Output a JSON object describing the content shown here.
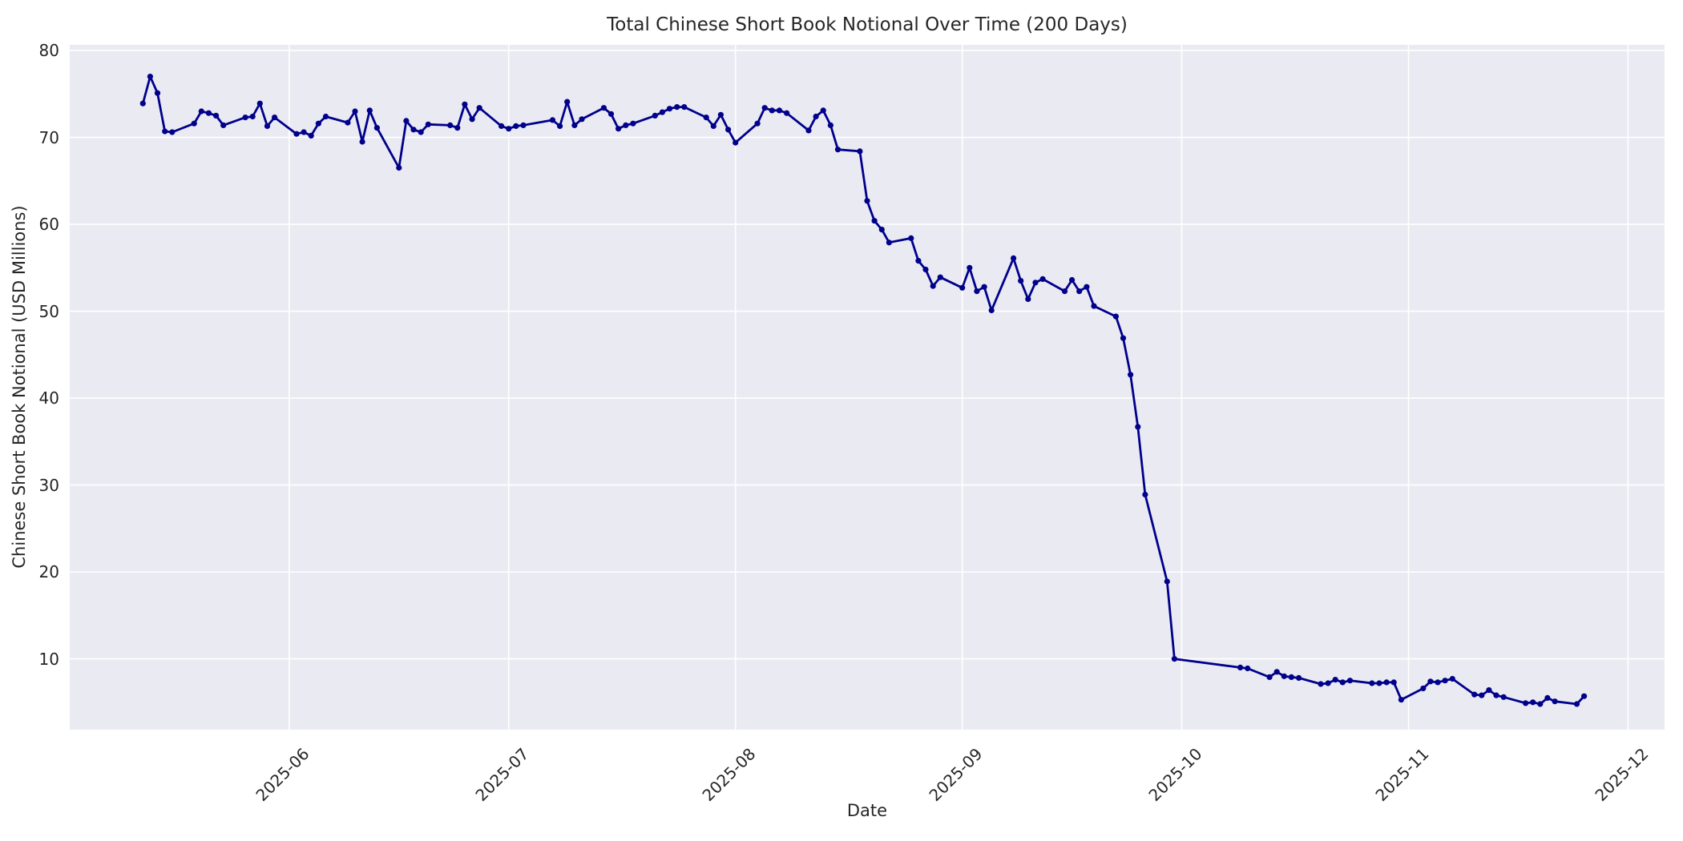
{
  "chart_data": {
    "type": "line",
    "title": "Total Chinese Short Book Notional Over Time (200 Days)",
    "xlabel": "Date",
    "ylabel": "Chinese Short Book Notional (USD Millions)",
    "legend": null,
    "grid": true,
    "line_color": "#00008B",
    "marker": "circle",
    "plot_background": "#EAEAF2",
    "grid_color": "#FFFFFF",
    "text_color": "#262626",
    "xlim": [
      "2025-05-02",
      "2025-12-06"
    ],
    "ylim": [
      1.85,
      80.65
    ],
    "y_ticks": [
      10,
      20,
      30,
      40,
      50,
      60,
      70,
      80
    ],
    "x_ticks": [
      {
        "date": "2025-06-01",
        "label": "2025-06"
      },
      {
        "date": "2025-07-01",
        "label": "2025-07"
      },
      {
        "date": "2025-08-01",
        "label": "2025-08"
      },
      {
        "date": "2025-09-01",
        "label": "2025-09"
      },
      {
        "date": "2025-10-01",
        "label": "2025-10"
      },
      {
        "date": "2025-11-01",
        "label": "2025-11"
      },
      {
        "date": "2025-12-01",
        "label": "2025-12"
      }
    ],
    "series": [
      {
        "name": "Total Chinese Short Book Notional",
        "x": [
          "2025-05-12",
          "2025-05-13",
          "2025-05-14",
          "2025-05-15",
          "2025-05-16",
          "2025-05-19",
          "2025-05-20",
          "2025-05-21",
          "2025-05-22",
          "2025-05-23",
          "2025-05-26",
          "2025-05-27",
          "2025-05-28",
          "2025-05-29",
          "2025-05-30",
          "2025-06-02",
          "2025-06-03",
          "2025-06-04",
          "2025-06-05",
          "2025-06-06",
          "2025-06-09",
          "2025-06-10",
          "2025-06-11",
          "2025-06-12",
          "2025-06-13",
          "2025-06-16",
          "2025-06-17",
          "2025-06-18",
          "2025-06-19",
          "2025-06-20",
          "2025-06-23",
          "2025-06-24",
          "2025-06-25",
          "2025-06-26",
          "2025-06-27",
          "2025-06-30",
          "2025-07-01",
          "2025-07-02",
          "2025-07-03",
          "2025-07-07",
          "2025-07-08",
          "2025-07-09",
          "2025-07-10",
          "2025-07-11",
          "2025-07-14",
          "2025-07-15",
          "2025-07-16",
          "2025-07-17",
          "2025-07-18",
          "2025-07-21",
          "2025-07-22",
          "2025-07-23",
          "2025-07-24",
          "2025-07-25",
          "2025-07-28",
          "2025-07-29",
          "2025-07-30",
          "2025-07-31",
          "2025-08-01",
          "2025-08-04",
          "2025-08-05",
          "2025-08-06",
          "2025-08-07",
          "2025-08-08",
          "2025-08-11",
          "2025-08-12",
          "2025-08-13",
          "2025-08-14",
          "2025-08-15",
          "2025-08-18",
          "2025-08-19",
          "2025-08-20",
          "2025-08-21",
          "2025-08-22",
          "2025-08-25",
          "2025-08-26",
          "2025-08-27",
          "2025-08-28",
          "2025-08-29",
          "2025-09-01",
          "2025-09-02",
          "2025-09-03",
          "2025-09-04",
          "2025-09-05",
          "2025-09-08",
          "2025-09-09",
          "2025-09-10",
          "2025-09-11",
          "2025-09-12",
          "2025-09-15",
          "2025-09-16",
          "2025-09-17",
          "2025-09-18",
          "2025-09-19",
          "2025-09-22",
          "2025-09-23",
          "2025-09-24",
          "2025-09-25",
          "2025-09-26",
          "2025-09-29",
          "2025-09-30",
          "2025-10-09",
          "2025-10-10",
          "2025-10-13",
          "2025-10-14",
          "2025-10-15",
          "2025-10-16",
          "2025-10-17",
          "2025-10-20",
          "2025-10-21",
          "2025-10-22",
          "2025-10-23",
          "2025-10-24",
          "2025-10-27",
          "2025-10-28",
          "2025-10-29",
          "2025-10-30",
          "2025-10-31",
          "2025-11-03",
          "2025-11-04",
          "2025-11-05",
          "2025-11-06",
          "2025-11-07",
          "2025-11-10",
          "2025-11-11",
          "2025-11-12",
          "2025-11-13",
          "2025-11-14",
          "2025-11-17",
          "2025-11-18",
          "2025-11-19",
          "2025-11-20",
          "2025-11-21",
          "2025-11-24",
          "2025-11-25"
        ],
        "y": [
          73.9,
          77.0,
          75.1,
          70.7,
          70.6,
          71.6,
          73.0,
          72.8,
          72.5,
          71.4,
          72.3,
          72.4,
          73.9,
          71.3,
          72.3,
          70.4,
          70.6,
          70.2,
          71.6,
          72.4,
          71.7,
          73.0,
          69.5,
          73.1,
          71.1,
          66.5,
          71.9,
          70.9,
          70.6,
          71.5,
          71.4,
          71.1,
          73.8,
          72.1,
          73.4,
          71.3,
          71.0,
          71.3,
          71.4,
          72.0,
          71.3,
          74.1,
          71.4,
          72.1,
          73.4,
          72.7,
          71.0,
          71.4,
          71.6,
          72.5,
          72.9,
          73.3,
          73.5,
          73.5,
          72.3,
          71.3,
          72.6,
          70.9,
          69.4,
          71.6,
          73.4,
          73.1,
          73.1,
          72.8,
          70.8,
          72.4,
          73.1,
          71.4,
          68.6,
          68.4,
          62.7,
          60.4,
          59.4,
          57.9,
          58.4,
          55.8,
          54.8,
          52.9,
          53.9,
          52.7,
          55.0,
          52.3,
          52.8,
          50.1,
          56.1,
          53.5,
          51.4,
          53.3,
          53.7,
          52.3,
          53.6,
          52.3,
          52.8,
          50.6,
          49.4,
          46.9,
          42.7,
          36.7,
          28.9,
          18.9,
          10.0,
          9.0,
          8.9,
          7.9,
          8.5,
          8.0,
          7.9,
          7.8,
          7.1,
          7.2,
          7.6,
          7.3,
          7.5,
          7.2,
          7.2,
          7.3,
          7.3,
          5.3,
          6.6,
          7.4,
          7.3,
          7.5,
          7.7,
          5.9,
          5.8,
          6.4,
          5.8,
          5.6,
          4.9,
          5.0,
          4.8,
          5.5,
          5.1,
          4.8,
          5.7
        ]
      }
    ]
  }
}
